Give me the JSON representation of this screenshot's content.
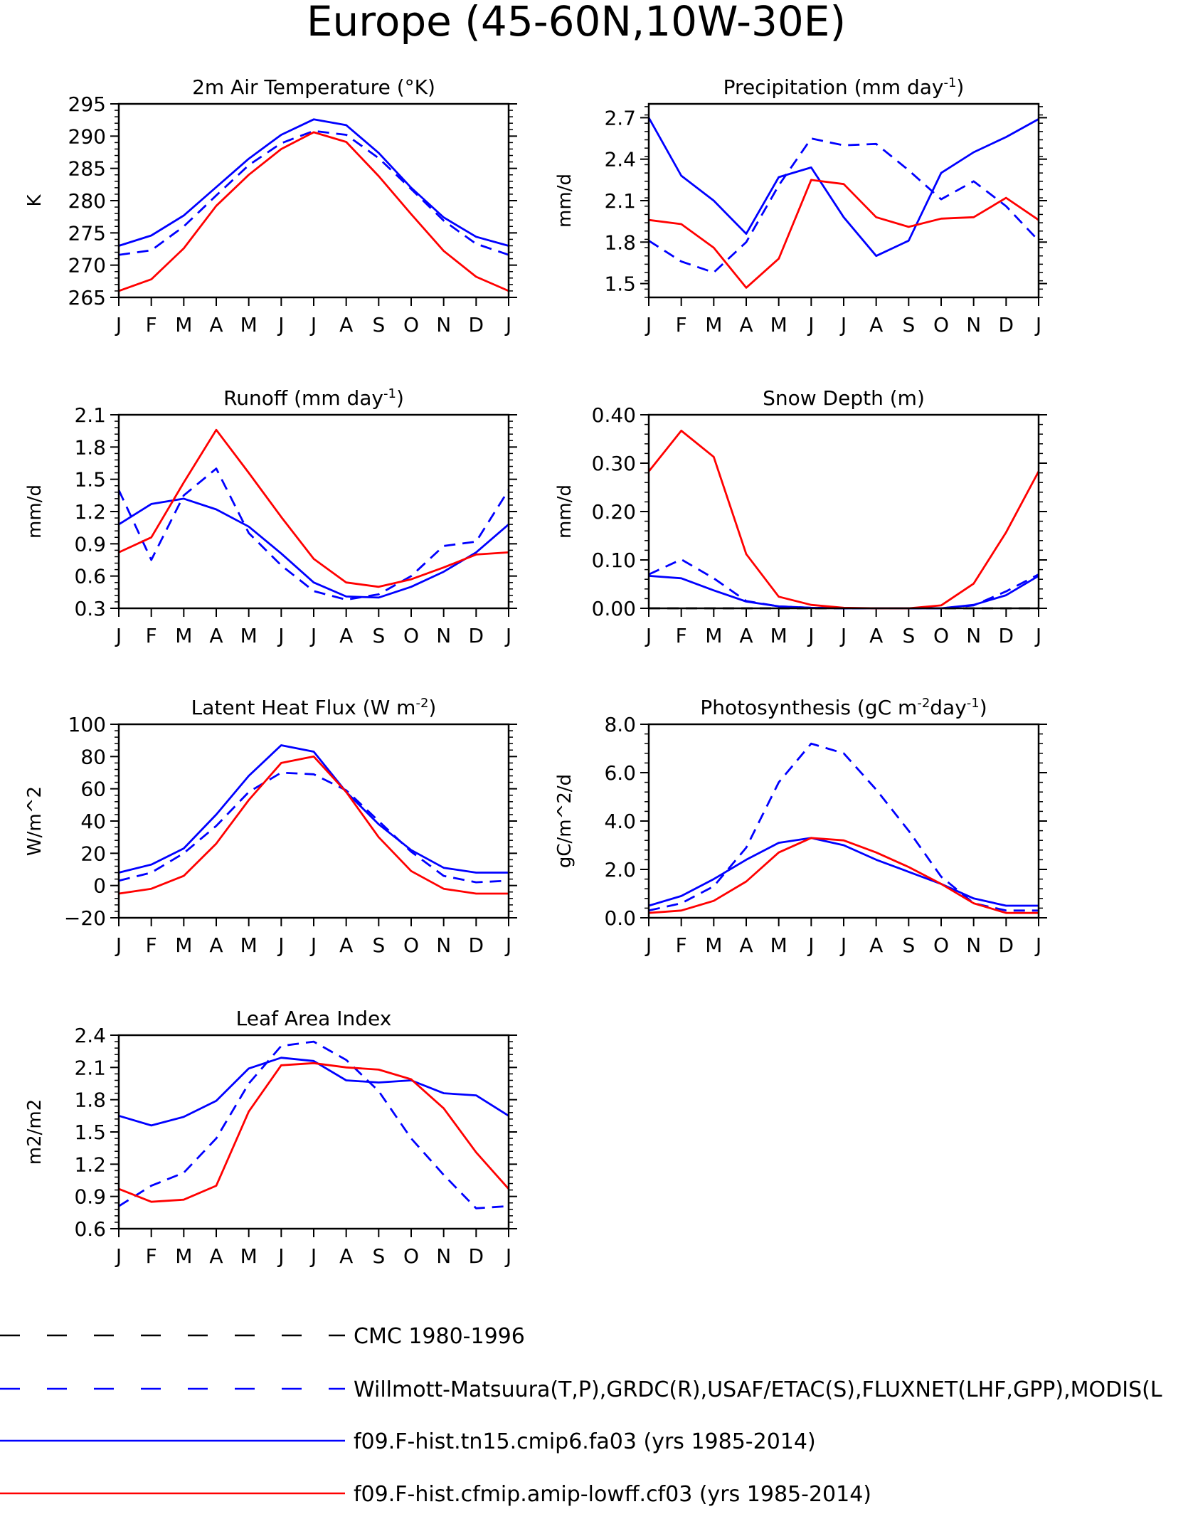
{
  "page_title": "Europe (45-60N,10W-30E)",
  "months": [
    "J",
    "F",
    "M",
    "A",
    "M",
    "J",
    "J",
    "A",
    "S",
    "O",
    "N",
    "D",
    "J"
  ],
  "colors": {
    "obs": "#0000ff",
    "cmc": "#000000",
    "model_blue": "#0000ff",
    "model_red": "#ff0000"
  },
  "legend": [
    {
      "label": "CMC 1980-1996",
      "color": "#000000",
      "style": "dashed"
    },
    {
      "label": "Willmott-Matsuura(T,P),GRDC(R),USAF/ETAC(S),FLUXNET(LHF,GPP),MODIS(L",
      "color": "#0000ff",
      "style": "dashed"
    },
    {
      "label": "f09.F-hist.tn15.cmip6.fa03 (yrs 1985-2014)",
      "color": "#0000ff",
      "style": "solid"
    },
    {
      "label": "f09.F-hist.cfmip.amip-lowff.cf03 (yrs 1985-2014)",
      "color": "#ff0000",
      "style": "solid"
    }
  ],
  "chart_data": [
    {
      "type": "line",
      "id": "temp",
      "title": "2m Air Temperature (°K)",
      "ylabel": "K",
      "ylim": [
        265,
        295
      ],
      "yticks": [
        265,
        270,
        275,
        280,
        285,
        290,
        295
      ],
      "yfmt": 0,
      "series": [
        {
          "name": "Willmott-Matsuura(T,P),GRDC(R),USAF/ETAC(S),FLUXNET(LHF,GPP),MODIS(L",
          "style": "dashed",
          "color": "#0000ff",
          "values": [
            271.6,
            272.3,
            276.0,
            280.8,
            285.5,
            288.9,
            290.8,
            290.2,
            286.6,
            281.8,
            276.9,
            273.3,
            271.6
          ]
        },
        {
          "name": "f09.F-hist.tn15.cmip6.fa03 (yrs 1985-2014)",
          "style": "solid",
          "color": "#0000ff",
          "values": [
            273.0,
            274.6,
            277.7,
            282.1,
            286.5,
            290.2,
            292.6,
            291.7,
            287.4,
            282.0,
            277.4,
            274.4,
            273.0
          ]
        },
        {
          "name": "f09.F-hist.cfmip.amip-lowff.cf03 (yrs 1985-2014)",
          "style": "solid",
          "color": "#ff0000",
          "values": [
            266.0,
            267.8,
            272.6,
            279.2,
            284.0,
            288.0,
            290.6,
            289.1,
            283.8,
            277.9,
            272.2,
            268.2,
            266.0
          ]
        }
      ]
    },
    {
      "type": "line",
      "id": "precip",
      "title": "Precipitation (mm day",
      "title_sup": "-1",
      "title_end": ")",
      "ylabel": "mm/d",
      "ylim": [
        1.4,
        2.8
      ],
      "yticks": [
        1.5,
        1.8,
        2.1,
        2.4,
        2.7
      ],
      "yfmt": 1,
      "series": [
        {
          "name": "Willmott-Matsuura(T,P),GRDC(R),USAF/ETAC(S),FLUXNET(LHF,GPP),MODIS(L",
          "style": "dashed",
          "color": "#0000ff",
          "values": [
            1.81,
            1.66,
            1.58,
            1.8,
            2.21,
            2.55,
            2.5,
            2.51,
            2.32,
            2.11,
            2.24,
            2.06,
            1.81
          ]
        },
        {
          "name": "f09.F-hist.tn15.cmip6.fa03 (yrs 1985-2014)",
          "style": "solid",
          "color": "#0000ff",
          "values": [
            2.7,
            2.28,
            2.1,
            1.86,
            2.27,
            2.34,
            1.98,
            1.7,
            1.81,
            2.3,
            2.45,
            2.56,
            2.69
          ]
        },
        {
          "name": "f09.F-hist.cfmip.amip-lowff.cf03 (yrs 1985-2014)",
          "style": "solid",
          "color": "#ff0000",
          "values": [
            1.96,
            1.93,
            1.76,
            1.47,
            1.68,
            2.25,
            2.22,
            1.98,
            1.91,
            1.97,
            1.98,
            2.12,
            1.96
          ]
        }
      ]
    },
    {
      "type": "line",
      "id": "runoff",
      "title": "Runoff (mm day",
      "title_sup": "-1",
      "title_end": ")",
      "ylabel": "mm/d",
      "ylim": [
        0.3,
        2.1
      ],
      "yticks": [
        0.3,
        0.6,
        0.9,
        1.2,
        1.5,
        1.8,
        2.1
      ],
      "yfmt": 1,
      "series": [
        {
          "name": "Willmott-Matsuura(T,P),GRDC(R),USAF/ETAC(S),FLUXNET(LHF,GPP),MODIS(L",
          "style": "dashed",
          "color": "#0000ff",
          "values": [
            1.4,
            0.75,
            1.35,
            1.6,
            1.0,
            0.7,
            0.46,
            0.38,
            0.43,
            0.6,
            0.88,
            0.92,
            1.4
          ]
        },
        {
          "name": "f09.F-hist.tn15.cmip6.fa03 (yrs 1985-2014)",
          "style": "solid",
          "color": "#0000ff",
          "values": [
            1.08,
            1.27,
            1.32,
            1.22,
            1.06,
            0.81,
            0.54,
            0.41,
            0.4,
            0.5,
            0.64,
            0.82,
            1.08
          ]
        },
        {
          "name": "f09.F-hist.cfmip.amip-lowff.cf03 (yrs 1985-2014)",
          "style": "solid",
          "color": "#ff0000",
          "values": [
            0.82,
            0.96,
            1.47,
            1.96,
            1.56,
            1.15,
            0.76,
            0.54,
            0.5,
            0.57,
            0.68,
            0.8,
            0.82
          ]
        }
      ]
    },
    {
      "type": "line",
      "id": "snow",
      "title": "Snow Depth (m)",
      "ylabel": "mm/d",
      "ylim": [
        0.0,
        0.4
      ],
      "yticks": [
        0.0,
        0.1,
        0.2,
        0.3,
        0.4
      ],
      "yfmt": 2,
      "series": [
        {
          "name": "CMC 1980-1996",
          "style": "dashed",
          "color": "#000000",
          "values": [
            0.0,
            0.0,
            0.0,
            0.0,
            0.0,
            0.0,
            0.0,
            0.0,
            0.0,
            0.0,
            0.0,
            0.0,
            0.0
          ]
        },
        {
          "name": "Willmott-Matsuura(T,P),GRDC(R),USAF/ETAC(S),FLUXNET(LHF,GPP),MODIS(L",
          "style": "dashed",
          "color": "#0000ff",
          "values": [
            0.07,
            0.101,
            0.062,
            0.015,
            0.004,
            0.001,
            0.0,
            0.0,
            0.0,
            0.0,
            0.006,
            0.035,
            0.07
          ]
        },
        {
          "name": "f09.F-hist.tn15.cmip6.fa03 (yrs 1985-2014)",
          "style": "solid",
          "color": "#0000ff",
          "values": [
            0.067,
            0.062,
            0.037,
            0.014,
            0.004,
            0.001,
            0.0,
            0.0,
            0.0,
            0.0,
            0.007,
            0.027,
            0.067
          ]
        },
        {
          "name": "f09.F-hist.cfmip.amip-lowff.cf03 (yrs 1985-2014)",
          "style": "solid",
          "color": "#ff0000",
          "values": [
            0.283,
            0.367,
            0.313,
            0.112,
            0.024,
            0.007,
            0.001,
            0.0,
            0.0,
            0.006,
            0.051,
            0.157,
            0.283
          ]
        }
      ]
    },
    {
      "type": "line",
      "id": "lhf",
      "title": "Latent Heat Flux (W m",
      "title_sup": "-2",
      "title_end": ")",
      "ylabel": "W/m^2",
      "ylim": [
        -20,
        100
      ],
      "yticks": [
        -20,
        0,
        20,
        40,
        60,
        80,
        100
      ],
      "yfmt": 0,
      "series": [
        {
          "name": "Willmott-Matsuura(T,P),GRDC(R),USAF/ETAC(S),FLUXNET(LHF,GPP),MODIS(L",
          "style": "dashed",
          "color": "#0000ff",
          "values": [
            3,
            8,
            20,
            37,
            58,
            70,
            69,
            59,
            40,
            21,
            6,
            2,
            3
          ]
        },
        {
          "name": "f09.F-hist.tn15.cmip6.fa03 (yrs 1985-2014)",
          "style": "solid",
          "color": "#0000ff",
          "values": [
            8,
            13,
            23,
            44,
            68,
            87,
            83,
            58,
            38,
            22,
            11,
            8,
            8
          ]
        },
        {
          "name": "f09.F-hist.cfmip.amip-lowff.cf03 (yrs 1985-2014)",
          "style": "solid",
          "color": "#ff0000",
          "values": [
            -5,
            -2,
            6,
            26,
            53,
            76,
            80,
            58,
            30,
            9,
            -2,
            -5,
            -5
          ]
        }
      ]
    },
    {
      "type": "line",
      "id": "gpp",
      "title": "Photosynthesis (gC m",
      "title_sup": "-2",
      "title_mid": "day",
      "title_sup2": "-1",
      "title_end": ")",
      "ylabel": "gC/m^2/d",
      "ylim": [
        0.0,
        8.0
      ],
      "yticks": [
        0.0,
        2.0,
        4.0,
        6.0,
        8.0
      ],
      "yfmt": 1,
      "series": [
        {
          "name": "Willmott-Matsuura(T,P),GRDC(R),USAF/ETAC(S),FLUXNET(LHF,GPP),MODIS(L",
          "style": "dashed",
          "color": "#0000ff",
          "values": [
            0.3,
            0.6,
            1.3,
            2.9,
            5.6,
            7.2,
            6.8,
            5.3,
            3.6,
            1.7,
            0.6,
            0.3,
            0.3
          ]
        },
        {
          "name": "f09.F-hist.tn15.cmip6.fa03 (yrs 1985-2014)",
          "style": "solid",
          "color": "#0000ff",
          "values": [
            0.5,
            0.9,
            1.6,
            2.4,
            3.1,
            3.3,
            3.0,
            2.4,
            1.9,
            1.4,
            0.8,
            0.5,
            0.5
          ]
        },
        {
          "name": "f09.F-hist.cfmip.amip-lowff.cf03 (yrs 1985-2014)",
          "style": "solid",
          "color": "#ff0000",
          "values": [
            0.2,
            0.3,
            0.7,
            1.5,
            2.7,
            3.3,
            3.2,
            2.7,
            2.1,
            1.4,
            0.6,
            0.2,
            0.2
          ]
        }
      ]
    },
    {
      "type": "line",
      "id": "lai",
      "title": "Leaf Area Index",
      "ylabel": "m2/m2",
      "ylim": [
        0.6,
        2.4
      ],
      "yticks": [
        0.6,
        0.9,
        1.2,
        1.5,
        1.8,
        2.1,
        2.4
      ],
      "yfmt": 1,
      "series": [
        {
          "name": "Willmott-Matsuura(T,P),GRDC(R),USAF/ETAC(S),FLUXNET(LHF,GPP),MODIS(L",
          "style": "dashed",
          "color": "#0000ff",
          "values": [
            0.81,
            1.0,
            1.12,
            1.44,
            1.95,
            2.3,
            2.34,
            2.17,
            1.88,
            1.44,
            1.1,
            0.79,
            0.81
          ]
        },
        {
          "name": "f09.F-hist.tn15.cmip6.fa03 (yrs 1985-2014)",
          "style": "solid",
          "color": "#0000ff",
          "values": [
            1.65,
            1.56,
            1.64,
            1.79,
            2.09,
            2.19,
            2.16,
            1.98,
            1.96,
            1.98,
            1.86,
            1.84,
            1.65
          ]
        },
        {
          "name": "f09.F-hist.cfmip.amip-lowff.cf03 (yrs 1985-2014)",
          "style": "solid",
          "color": "#ff0000",
          "values": [
            0.97,
            0.85,
            0.87,
            1.0,
            1.69,
            2.12,
            2.14,
            2.1,
            2.08,
            1.99,
            1.72,
            1.31,
            0.97
          ]
        }
      ]
    }
  ]
}
